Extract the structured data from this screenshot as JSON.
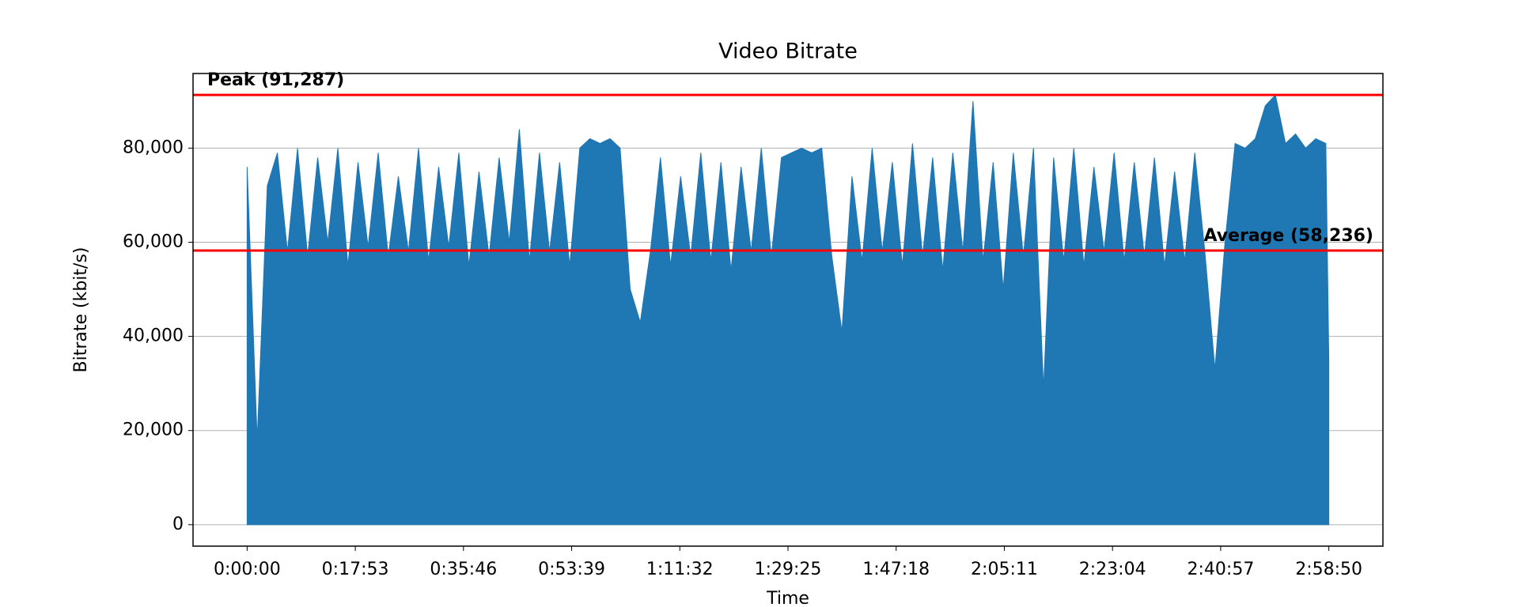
{
  "chart_data": {
    "type": "area",
    "title": "Video Bitrate",
    "x_label": "Time",
    "y_label": "Bitrate (kbit/s)",
    "x": [
      0,
      100,
      200,
      300,
      400,
      500,
      600,
      700,
      800,
      900,
      1000,
      1100,
      1200,
      1300,
      1400,
      1500,
      1600,
      1700,
      1800,
      1900,
      2000,
      2100,
      2200,
      2300,
      2400,
      2500,
      2600,
      2700,
      2800,
      2900,
      3000,
      3100,
      3200,
      3300,
      3400,
      3500,
      3600,
      3700,
      3800,
      3900,
      4000,
      4100,
      4200,
      4300,
      4400,
      4500,
      4600,
      4700,
      4800,
      4900,
      5000,
      5100,
      5200,
      5300,
      5400,
      5500,
      5600,
      5700,
      5800,
      5900,
      6000,
      6100,
      6200,
      6300,
      6400,
      6500,
      6600,
      6700,
      6800,
      6900,
      7000,
      7100,
      7200,
      7300,
      7400,
      7500,
      7600,
      7700,
      7800,
      7900,
      8000,
      8100,
      8200,
      8300,
      8400,
      8500,
      8600,
      8700,
      8800,
      8900,
      9000,
      9100,
      9200,
      9300,
      9400,
      9500,
      9600,
      9700,
      9800,
      9900,
      10000,
      10100,
      10200,
      10300,
      10400,
      10500,
      10600,
      10700,
      10730
    ],
    "series": [
      {
        "color": "#1f77b4",
        "values": [
          76000,
          18000,
          72000,
          79000,
          58000,
          80000,
          57000,
          78000,
          60000,
          80000,
          55000,
          77000,
          59000,
          79000,
          57000,
          74000,
          58000,
          80000,
          56000,
          76000,
          59000,
          79000,
          55000,
          75000,
          57000,
          78000,
          60000,
          84000,
          56000,
          79000,
          58000,
          77000,
          55000,
          80000,
          82000,
          81000,
          82000,
          80000,
          50000,
          43000,
          58000,
          78000,
          55000,
          74000,
          57000,
          79000,
          56000,
          77000,
          54000,
          76000,
          58000,
          80000,
          57000,
          78000,
          79000,
          80000,
          79000,
          80000,
          57000,
          41000,
          74000,
          56000,
          80000,
          58000,
          77000,
          55000,
          81000,
          57000,
          78000,
          54000,
          79000,
          58000,
          90000,
          56000,
          77000,
          50000,
          79000,
          57000,
          80000,
          29000,
          78000,
          56000,
          80000,
          55000,
          76000,
          58000,
          79000,
          56000,
          77000,
          57000,
          78000,
          55000,
          75000,
          56000,
          79000,
          58000,
          33000,
          60000,
          81000,
          80000,
          82000,
          89000,
          91287,
          81000,
          83000,
          80000,
          82000,
          81000,
          35000
        ]
      }
    ],
    "hlines": [
      {
        "label": "Peak (91,287)",
        "value": 91287,
        "color": "#ff0000"
      },
      {
        "label": "Average (58,236)",
        "value": 58236,
        "color": "#ff0000"
      }
    ],
    "xlim": [
      -536.5,
      11266.5
    ],
    "xticks": [
      {
        "value": 0,
        "label": "0:00:00"
      },
      {
        "value": 1073,
        "label": "0:17:53"
      },
      {
        "value": 2146,
        "label": "0:35:46"
      },
      {
        "value": 3219,
        "label": "0:53:39"
      },
      {
        "value": 4292,
        "label": "1:11:32"
      },
      {
        "value": 5365,
        "label": "1:29:25"
      },
      {
        "value": 6438,
        "label": "1:47:18"
      },
      {
        "value": 7511,
        "label": "2:05:11"
      },
      {
        "value": 8584,
        "label": "2:23:04"
      },
      {
        "value": 9657,
        "label": "2:40:57"
      },
      {
        "value": 10730,
        "label": "2:58:50"
      }
    ],
    "ylim": [
      -4564,
      95851
    ],
    "yticks": [
      0,
      {
        "value": 20000,
        "label": "20,000"
      },
      {
        "value": 40000,
        "label": "40,000"
      },
      {
        "value": 60000,
        "label": "60,000"
      },
      {
        "value": 80000,
        "label": "80,000"
      }
    ],
    "grid": true
  }
}
